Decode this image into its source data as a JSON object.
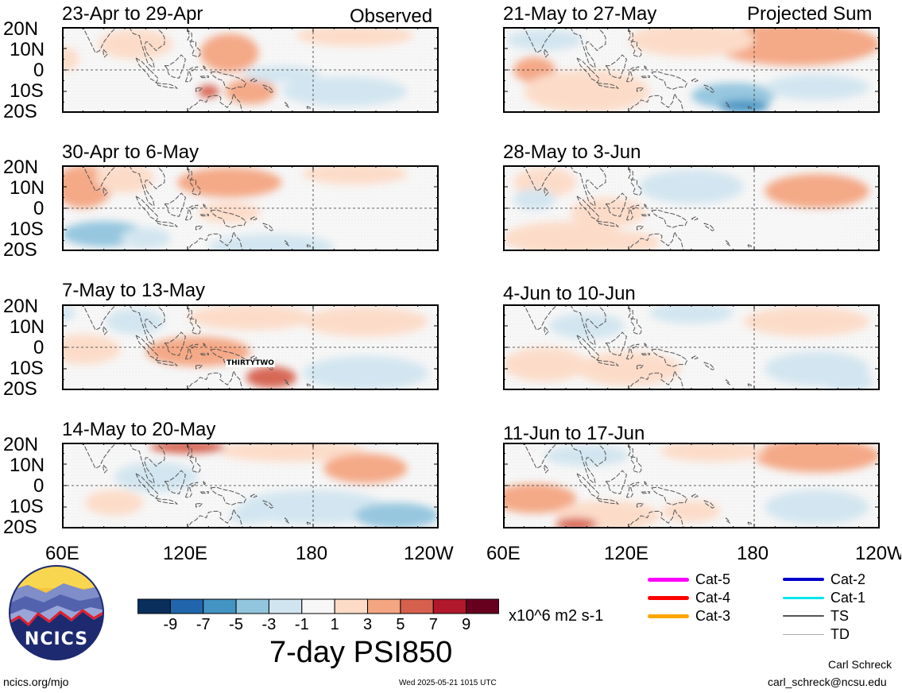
{
  "columns": {
    "left_label": "Observed",
    "right_label": "Projected Sum"
  },
  "panels": [
    {
      "title": "23-Apr to 29-Apr",
      "annotation": ""
    },
    {
      "title": "30-Apr to 6-May",
      "annotation": ""
    },
    {
      "title": "7-May to 13-May",
      "annotation": "THIRTYTWO"
    },
    {
      "title": "14-May to 20-May",
      "annotation": ""
    },
    {
      "title": "21-May to 27-May",
      "annotation": ""
    },
    {
      "title": "28-May to 3-Jun",
      "annotation": ""
    },
    {
      "title": "4-Jun to 10-Jun",
      "annotation": ""
    },
    {
      "title": "11-Jun to 17-Jun",
      "annotation": ""
    }
  ],
  "lat_labels": [
    "20N",
    "10N",
    "0",
    "10S",
    "20S"
  ],
  "lon_labels": [
    "60E",
    "120E",
    "180",
    "120W"
  ],
  "colorbar": {
    "title": "7-day PSI850",
    "units": "x10^6 m2 s-1",
    "ticks": [
      "-9",
      "-7",
      "-5",
      "-3",
      "-1",
      "1",
      "3",
      "5",
      "7",
      "9"
    ],
    "colors": [
      "#0a2f5c",
      "#2166ac",
      "#4393c3",
      "#92c5de",
      "#d1e5f0",
      "#f7f7f7",
      "#fddbc7",
      "#f4a582",
      "#d6604d",
      "#b2182b",
      "#67001f"
    ]
  },
  "storm_legend": [
    {
      "label": "Cat-5",
      "color": "#ff00ff",
      "width": 5
    },
    {
      "label": "Cat-4",
      "color": "#ff0000",
      "width": 5
    },
    {
      "label": "Cat-3",
      "color": "#ffa500",
      "width": 5
    },
    {
      "label": "Cat-2",
      "color": "#0000cc",
      "width": 4
    },
    {
      "label": "Cat-1",
      "color": "#00e5ee",
      "width": 3
    },
    {
      "label": "TS",
      "color": "#555555",
      "width": 2
    },
    {
      "label": "TD",
      "color": "#aaaaaa",
      "width": 1
    }
  ],
  "logo": {
    "text": "NCICS"
  },
  "footer": {
    "site": "ncics.org/mjo",
    "timestamp": "Wed 2025-05-21 1015 UTC",
    "author": "Carl Schreck",
    "email": "carl_schreck@ncsu.edu"
  }
}
